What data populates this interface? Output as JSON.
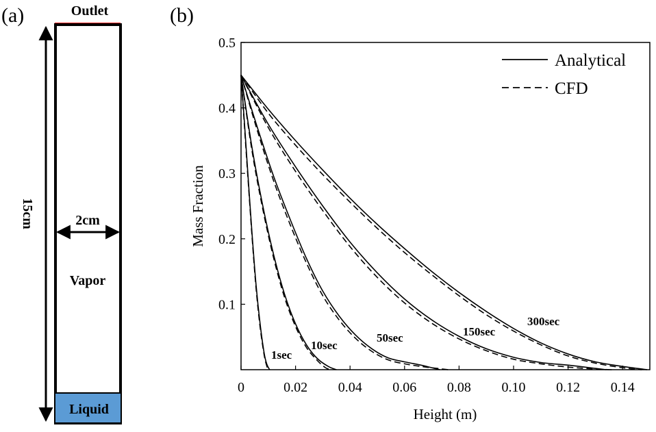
{
  "panel_a": {
    "label": "(a)",
    "outlet_label": "Outlet",
    "height_label": "15cm",
    "width_label": "2cm",
    "vapor_label": "Vapor",
    "liquid_label": "Liquid",
    "outlet_color": "#e8231f",
    "liquid_color": "#5b9bd5"
  },
  "panel_b": {
    "label": "(b)"
  },
  "chart_data": {
    "type": "line",
    "title": "",
    "xlabel": "Height (m)",
    "ylabel": "Mass Fraction",
    "xlim": [
      0,
      0.15
    ],
    "ylim": [
      0,
      0.5
    ],
    "x_ticks": [
      "0",
      "0.02",
      "0.04",
      "0.06",
      "0.08",
      "0.10",
      "0.12",
      "0.14"
    ],
    "y_ticks": [
      "0.1",
      "0.2",
      "0.3",
      "0.4",
      "0.5"
    ],
    "legend": {
      "position": "top-right",
      "entries": [
        {
          "name": "Analytical",
          "style": "solid"
        },
        {
          "name": "CFD",
          "style": "dashed"
        }
      ]
    },
    "series": [
      {
        "name": "1sec",
        "label": "1sec",
        "analytical": [
          [
            0,
            0.45
          ],
          [
            0.0012,
            0.38
          ],
          [
            0.0025,
            0.3
          ],
          [
            0.004,
            0.21
          ],
          [
            0.0055,
            0.13
          ],
          [
            0.007,
            0.07
          ],
          [
            0.0085,
            0.025
          ],
          [
            0.0095,
            0.008
          ],
          [
            0.0105,
            0
          ]
        ],
        "cfd": [
          [
            0,
            0.45
          ],
          [
            0.0012,
            0.375
          ],
          [
            0.0025,
            0.295
          ],
          [
            0.004,
            0.205
          ],
          [
            0.0055,
            0.125
          ],
          [
            0.007,
            0.065
          ],
          [
            0.0085,
            0.022
          ],
          [
            0.0095,
            0.005
          ],
          [
            0.01,
            0
          ]
        ]
      },
      {
        "name": "10sec",
        "label": "10sec",
        "analytical": [
          [
            0,
            0.45
          ],
          [
            0.004,
            0.34
          ],
          [
            0.008,
            0.25
          ],
          [
            0.012,
            0.175
          ],
          [
            0.016,
            0.115
          ],
          [
            0.02,
            0.07
          ],
          [
            0.024,
            0.038
          ],
          [
            0.028,
            0.017
          ],
          [
            0.032,
            0.005
          ],
          [
            0.035,
            0
          ]
        ],
        "cfd": [
          [
            0,
            0.45
          ],
          [
            0.004,
            0.335
          ],
          [
            0.008,
            0.245
          ],
          [
            0.012,
            0.17
          ],
          [
            0.016,
            0.11
          ],
          [
            0.02,
            0.066
          ],
          [
            0.024,
            0.034
          ],
          [
            0.028,
            0.014
          ],
          [
            0.031,
            0.003
          ],
          [
            0.033,
            0
          ]
        ]
      },
      {
        "name": "50sec",
        "label": "50sec",
        "analytical": [
          [
            0,
            0.45
          ],
          [
            0.006,
            0.37
          ],
          [
            0.012,
            0.295
          ],
          [
            0.018,
            0.23
          ],
          [
            0.024,
            0.17
          ],
          [
            0.03,
            0.12
          ],
          [
            0.036,
            0.082
          ],
          [
            0.042,
            0.053
          ],
          [
            0.048,
            0.032
          ],
          [
            0.054,
            0.018
          ],
          [
            0.06,
            0.012
          ],
          [
            0.066,
            0.007
          ],
          [
            0.07,
            0.003
          ],
          [
            0.073,
            0
          ]
        ],
        "cfd": [
          [
            0,
            0.45
          ],
          [
            0.006,
            0.365
          ],
          [
            0.012,
            0.288
          ],
          [
            0.018,
            0.222
          ],
          [
            0.024,
            0.163
          ],
          [
            0.03,
            0.113
          ],
          [
            0.036,
            0.076
          ],
          [
            0.042,
            0.048
          ],
          [
            0.048,
            0.028
          ],
          [
            0.054,
            0.015
          ],
          [
            0.06,
            0.009
          ],
          [
            0.066,
            0.005
          ],
          [
            0.072,
            0.002
          ],
          [
            0.076,
            0
          ]
        ]
      },
      {
        "name": "150sec",
        "label": "150sec",
        "analytical": [
          [
            0,
            0.45
          ],
          [
            0.01,
            0.375
          ],
          [
            0.02,
            0.31
          ],
          [
            0.03,
            0.25
          ],
          [
            0.04,
            0.195
          ],
          [
            0.05,
            0.148
          ],
          [
            0.06,
            0.108
          ],
          [
            0.07,
            0.076
          ],
          [
            0.08,
            0.051
          ],
          [
            0.09,
            0.032
          ],
          [
            0.1,
            0.019
          ],
          [
            0.11,
            0.011
          ],
          [
            0.12,
            0.007
          ],
          [
            0.13,
            0.002
          ],
          [
            0.134,
            0
          ]
        ],
        "cfd": [
          [
            0,
            0.45
          ],
          [
            0.01,
            0.37
          ],
          [
            0.02,
            0.303
          ],
          [
            0.03,
            0.243
          ],
          [
            0.04,
            0.188
          ],
          [
            0.05,
            0.141
          ],
          [
            0.06,
            0.102
          ],
          [
            0.07,
            0.071
          ],
          [
            0.08,
            0.047
          ],
          [
            0.09,
            0.029
          ],
          [
            0.1,
            0.016
          ],
          [
            0.11,
            0.009
          ],
          [
            0.12,
            0.004
          ],
          [
            0.13,
            0.001
          ],
          [
            0.136,
            0
          ]
        ]
      },
      {
        "name": "300sec",
        "label": "300sec",
        "analytical": [
          [
            0,
            0.45
          ],
          [
            0.01,
            0.398
          ],
          [
            0.02,
            0.35
          ],
          [
            0.03,
            0.305
          ],
          [
            0.04,
            0.262
          ],
          [
            0.05,
            0.222
          ],
          [
            0.06,
            0.185
          ],
          [
            0.07,
            0.15
          ],
          [
            0.08,
            0.118
          ],
          [
            0.09,
            0.089
          ],
          [
            0.1,
            0.063
          ],
          [
            0.11,
            0.041
          ],
          [
            0.12,
            0.024
          ],
          [
            0.13,
            0.012
          ],
          [
            0.14,
            0.005
          ],
          [
            0.149,
            0
          ]
        ],
        "cfd": [
          [
            0,
            0.45
          ],
          [
            0.01,
            0.392
          ],
          [
            0.02,
            0.343
          ],
          [
            0.03,
            0.298
          ],
          [
            0.04,
            0.256
          ],
          [
            0.05,
            0.216
          ],
          [
            0.06,
            0.179
          ],
          [
            0.07,
            0.145
          ],
          [
            0.08,
            0.113
          ],
          [
            0.09,
            0.084
          ],
          [
            0.1,
            0.059
          ],
          [
            0.11,
            0.038
          ],
          [
            0.12,
            0.021
          ],
          [
            0.13,
            0.01
          ],
          [
            0.14,
            0.003
          ],
          [
            0.147,
            0
          ]
        ]
      }
    ]
  }
}
